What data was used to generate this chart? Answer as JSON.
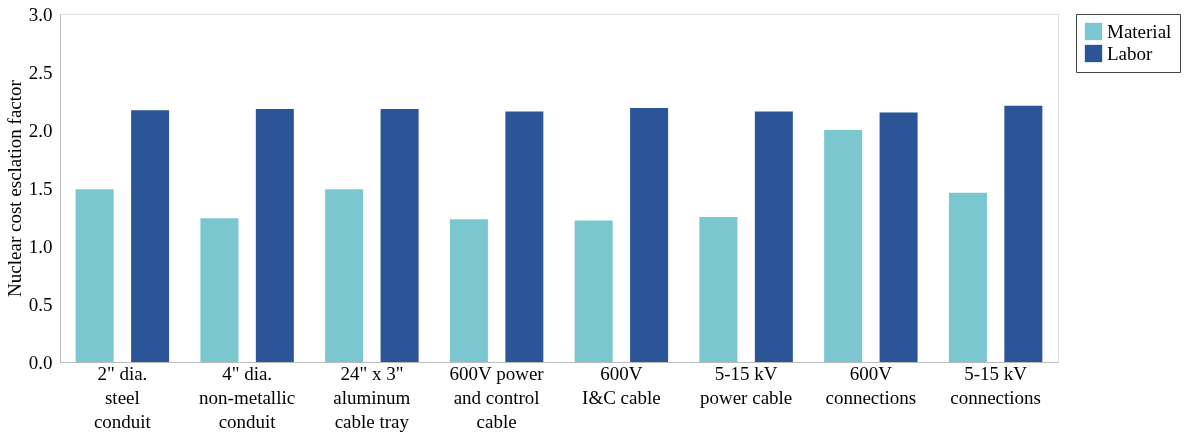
{
  "chart_data": {
    "type": "bar",
    "ylabel": "Nuclear cost esclation factor",
    "categories": [
      "2\" dia.\nsteel\nconduit",
      "4\" dia.\nnon-metallic\nconduit",
      "24\" x 3\"\naluminum\ncable tray",
      "600V power\nand control\ncable",
      "600V\nI&C cable",
      "5-15 kV\npower cable",
      "600V\nconnections",
      "5-15 kV\nconnections"
    ],
    "series": [
      {
        "name": "Material",
        "color": "#7ac7d0",
        "values": [
          1.49,
          1.24,
          1.49,
          1.23,
          1.22,
          1.25,
          2.0,
          1.46
        ]
      },
      {
        "name": "Labor",
        "color": "#2b5597",
        "values": [
          2.17,
          2.18,
          2.18,
          2.16,
          2.19,
          2.16,
          2.15,
          2.21
        ]
      }
    ],
    "ylim": [
      0,
      3.0
    ],
    "yticks": [
      {
        "value": 0,
        "label": "0.0"
      },
      {
        "value": 0.5,
        "label": "0.5"
      },
      {
        "value": 1,
        "label": "1.0"
      },
      {
        "value": 1.5,
        "label": "1.5"
      },
      {
        "value": 2,
        "label": "2.0"
      },
      {
        "value": 2.5,
        "label": "2.5"
      },
      {
        "value": 3,
        "label": "3.0"
      }
    ],
    "grid": false,
    "legend": "right"
  }
}
